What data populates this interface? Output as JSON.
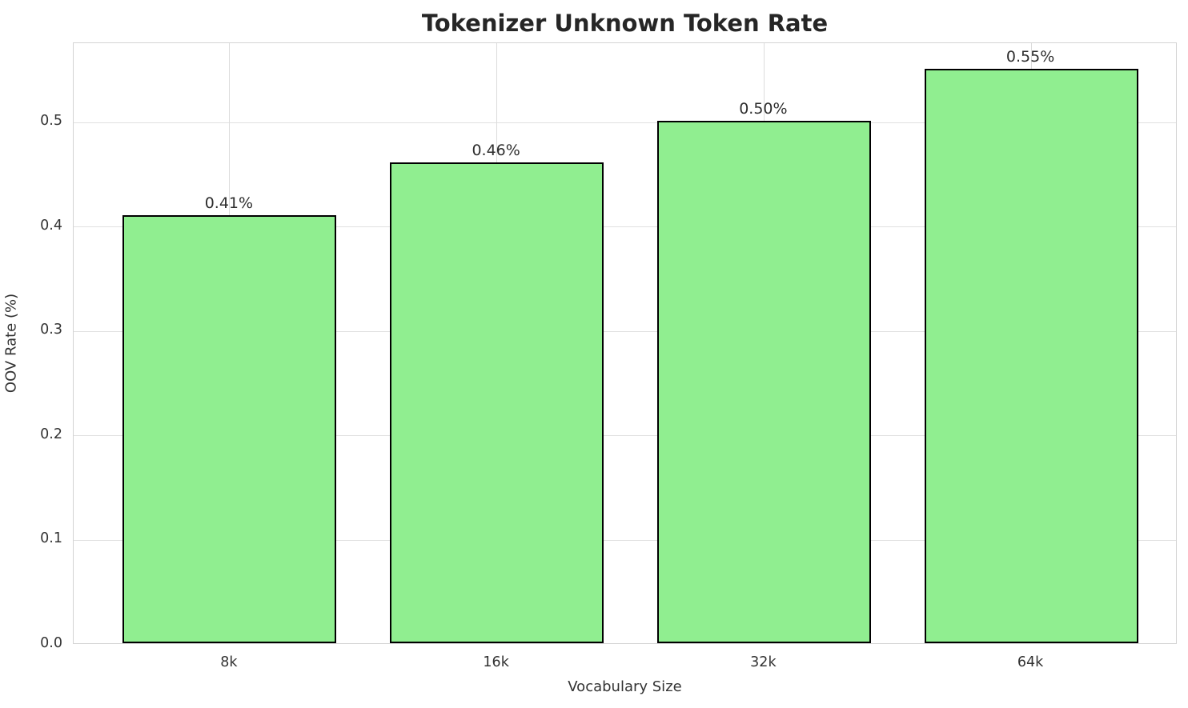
{
  "chart_data": {
    "type": "bar",
    "title": "Tokenizer Unknown Token Rate",
    "xlabel": "Vocabulary Size",
    "ylabel": "OOV Rate (%)",
    "categories": [
      "8k",
      "16k",
      "32k",
      "64k"
    ],
    "values": [
      0.41,
      0.46,
      0.5,
      0.55
    ],
    "value_labels": [
      "0.41%",
      "0.46%",
      "0.50%",
      "0.55%"
    ],
    "yticks": [
      0.0,
      0.1,
      0.2,
      0.3,
      0.4,
      0.5
    ],
    "ytick_labels": [
      "0.0",
      "0.1",
      "0.2",
      "0.3",
      "0.4",
      "0.5"
    ],
    "ylim": [
      0,
      0.576
    ],
    "grid": true,
    "legend": "none",
    "bar_color": "#90EE90",
    "bar_edge_color": "#000000",
    "grid_color": "#e0e0e0",
    "spine_color": "#d4d4d4",
    "title_color": "#262626",
    "text_color": "#333333"
  }
}
